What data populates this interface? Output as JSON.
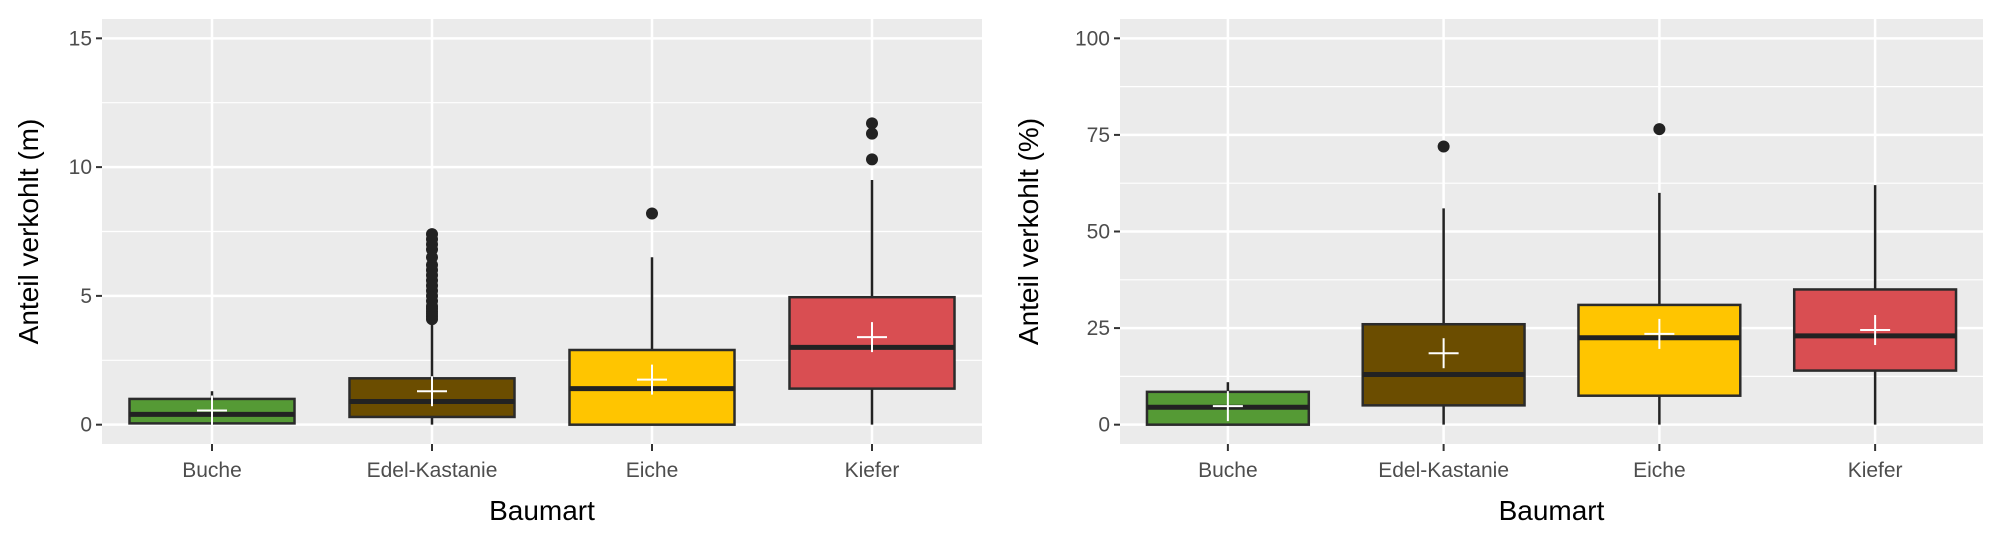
{
  "colors": {
    "Buche": "#559a35",
    "Edel-Kastanie": "#6b4d00",
    "Eiche": "#ffc500",
    "Kiefer": "#d94e52",
    "panel": "#ebebeb"
  },
  "chart_data": [
    {
      "type": "box",
      "xlabel": "Baumart",
      "ylabel": "Anteil verkohlt (m)",
      "ylim": [
        -0.75,
        15.75
      ],
      "yticks": [
        "0",
        "5",
        "10",
        "15"
      ],
      "ytick_values": [
        0,
        5,
        10,
        15
      ],
      "categories": [
        "Buche",
        "Edel-Kastanie",
        "Eiche",
        "Kiefer"
      ],
      "boxes": [
        {
          "min": 0,
          "q1": 0.05,
          "median": 0.4,
          "q3": 1.0,
          "max": 1.3,
          "mean": 0.55,
          "outliers": []
        },
        {
          "min": 0,
          "q1": 0.3,
          "median": 0.9,
          "q3": 1.8,
          "max": 4.0,
          "mean": 1.3,
          "outliers": [
            4.1,
            4.2,
            4.3,
            4.4,
            4.5,
            4.6,
            4.8,
            5.0,
            5.2,
            5.4,
            5.6,
            5.8,
            6.0,
            6.2,
            6.5,
            6.8,
            7.0,
            7.2,
            7.4
          ]
        },
        {
          "min": 0,
          "q1": 0,
          "median": 1.4,
          "q3": 2.9,
          "max": 6.5,
          "mean": 1.75,
          "outliers": [
            8.2
          ]
        },
        {
          "min": 0,
          "q1": 1.4,
          "median": 3.0,
          "q3": 4.95,
          "max": 9.5,
          "mean": 3.4,
          "outliers": [
            10.3,
            11.3,
            11.7
          ]
        }
      ]
    },
    {
      "type": "box",
      "xlabel": "Baumart",
      "ylabel": "Anteil verkohlt (%)",
      "ylim": [
        -5,
        105
      ],
      "yticks": [
        "0",
        "25",
        "50",
        "75",
        "100"
      ],
      "ytick_values": [
        0,
        25,
        50,
        75,
        100
      ],
      "categories": [
        "Buche",
        "Edel-Kastanie",
        "Eiche",
        "Kiefer"
      ],
      "boxes": [
        {
          "min": 0,
          "q1": 0,
          "median": 4.5,
          "q3": 8.5,
          "max": 11,
          "mean": 4.8,
          "outliers": []
        },
        {
          "min": 0,
          "q1": 5,
          "median": 13,
          "q3": 26,
          "max": 56,
          "mean": 18.5,
          "outliers": [
            72
          ]
        },
        {
          "min": 0,
          "q1": 7.5,
          "median": 22.5,
          "q3": 31,
          "max": 60,
          "mean": 23.5,
          "outliers": [
            76.5
          ]
        },
        {
          "min": 0,
          "q1": 14,
          "median": 23,
          "q3": 35,
          "max": 62,
          "mean": 24.5,
          "outliers": []
        }
      ]
    }
  ]
}
